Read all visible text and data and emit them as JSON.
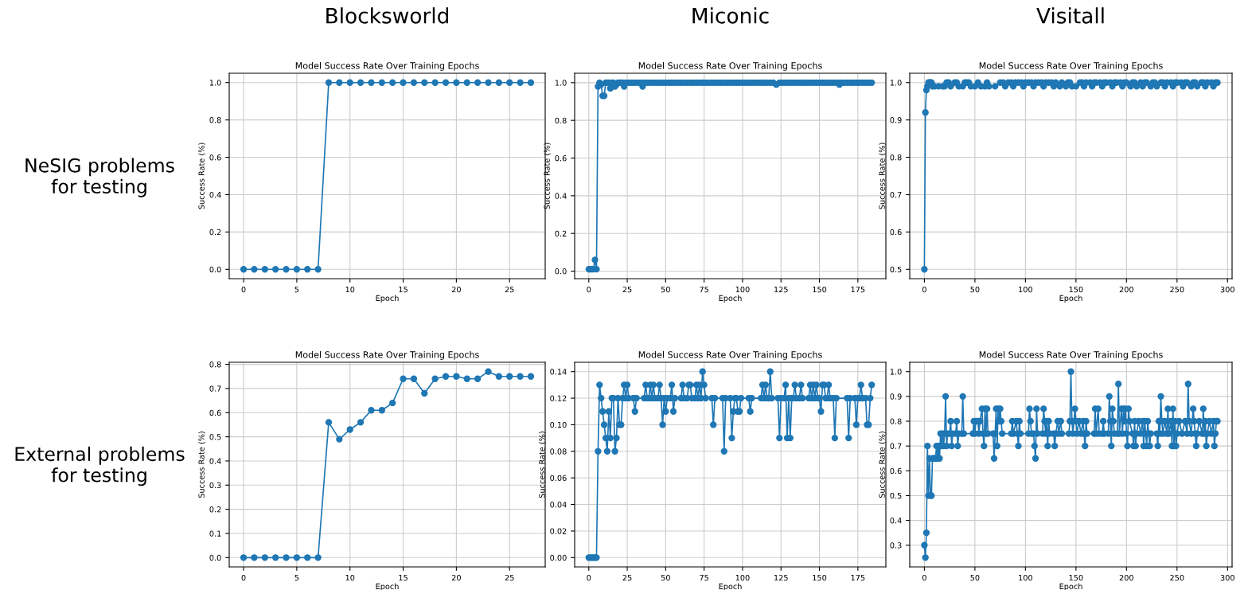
{
  "chart_data": [
    {
      "type": "line",
      "title": "Model Success Rate Over Training Epochs",
      "xlabel": "Epoch",
      "ylabel": "Success Rate (%)",
      "annotations": [
        "Blocksworld",
        "NeSIG problems\nfor testing"
      ],
      "grid": true,
      "marker": "circle",
      "line_style": "solid",
      "xlim": [
        -1.35,
        28.35
      ],
      "xticks": [
        0,
        5,
        10,
        15,
        20,
        25
      ],
      "ylim": [
        -0.05,
        1.05
      ],
      "yticks": [
        {
          "value": 0,
          "label": "0.0"
        },
        0.2,
        0.4,
        0.6,
        0.8,
        {
          "value": 1,
          "label": "1.0"
        }
      ],
      "series": [
        {
          "color": "#1f77b4",
          "x": [
            0,
            1,
            2,
            3,
            4,
            5,
            6,
            7,
            8,
            9,
            10,
            11,
            12,
            13,
            14,
            15,
            16,
            17,
            18,
            19,
            20,
            21,
            22,
            23,
            24,
            25,
            26,
            27
          ],
          "values": [
            0,
            0,
            0,
            0,
            0,
            0,
            0,
            0,
            1,
            1,
            1,
            1,
            1,
            1,
            1,
            1,
            1,
            1,
            1,
            1,
            1,
            1,
            1,
            1,
            1,
            1,
            1,
            1
          ]
        }
      ]
    },
    {
      "type": "line",
      "title": "Model Success Rate Over Training Epochs",
      "xlabel": "Epoch",
      "ylabel": "Success Rate (%)",
      "annotations": [
        "Miconic"
      ],
      "grid": true,
      "marker": "circle",
      "line_style": "solid",
      "xlim": [
        -9.2,
        193.2
      ],
      "xticks": [
        0,
        25,
        50,
        75,
        100,
        125,
        150,
        175
      ],
      "ylim": [
        -0.04,
        1.05
      ],
      "yticks": [
        {
          "value": 0,
          "label": "0.0"
        },
        0.2,
        0.4,
        0.6,
        0.8,
        {
          "value": 1,
          "label": "1.0"
        }
      ],
      "series": [
        {
          "color": "#1f77b4",
          "x": [
            0,
            1,
            2,
            3,
            4,
            5,
            6,
            7,
            8,
            9,
            10,
            11,
            12,
            13,
            14,
            15,
            16,
            17,
            18,
            19,
            20,
            21,
            22,
            23,
            24,
            26,
            28,
            30,
            32,
            34,
            35,
            36,
            38,
            40,
            42,
            44,
            46,
            48,
            50,
            52,
            54,
            56,
            58,
            60,
            62,
            64,
            66,
            68,
            70,
            72,
            74,
            76,
            78,
            80,
            82,
            84,
            86,
            88,
            90,
            92,
            94,
            96,
            98,
            100,
            102,
            104,
            106,
            108,
            110,
            112,
            114,
            116,
            118,
            120,
            122,
            124,
            126,
            128,
            130,
            132,
            134,
            136,
            138,
            140,
            142,
            144,
            146,
            148,
            150,
            152,
            154,
            156,
            158,
            160,
            162,
            163,
            164,
            166,
            168,
            170,
            172,
            174,
            176,
            178,
            180,
            182,
            184
          ],
          "values": [
            0.01,
            0.01,
            0.01,
            0.01,
            0.06,
            0.01,
            0.98,
            1.0,
            0.99,
            0.93,
            0.93,
            1.0,
            1.0,
            1.0,
            0.97,
            1.0,
            1.0,
            0.98,
            0.99,
            1.0,
            1.0,
            1.0,
            1.0,
            0.98,
            1.0,
            1.0,
            1.0,
            1.0,
            1.0,
            1.0,
            0.98,
            1.0,
            1.0,
            1.0,
            1.0,
            1.0,
            1.0,
            1.0,
            1.0,
            1.0,
            1.0,
            1.0,
            1.0,
            1.0,
            1.0,
            1.0,
            1.0,
            1.0,
            1.0,
            1.0,
            1.0,
            1.0,
            1.0,
            1.0,
            1.0,
            1.0,
            1.0,
            1.0,
            1.0,
            1.0,
            1.0,
            1.0,
            1.0,
            1.0,
            1.0,
            1.0,
            1.0,
            1.0,
            1.0,
            1.0,
            1.0,
            1.0,
            1.0,
            1.0,
            0.99,
            1.0,
            1.0,
            1.0,
            1.0,
            1.0,
            1.0,
            1.0,
            1.0,
            1.0,
            1.0,
            1.0,
            1.0,
            1.0,
            1.0,
            1.0,
            1.0,
            1.0,
            1.0,
            1.0,
            1.0,
            0.99,
            1.0,
            1.0,
            1.0,
            1.0,
            1.0,
            1.0,
            1.0,
            1.0,
            1.0,
            1.0,
            1.0
          ]
        }
      ]
    },
    {
      "type": "line",
      "title": "Model Success Rate Over Training Epochs",
      "xlabel": "Epoch",
      "ylabel": "Success Rate (%)",
      "annotations": [
        "Visitall"
      ],
      "grid": true,
      "marker": "circle",
      "line_style": "solid",
      "xlim": [
        -14.5,
        304.5
      ],
      "xticks": [
        0,
        50,
        100,
        150,
        200,
        250,
        300
      ],
      "ylim": [
        0.475,
        1.025
      ],
      "yticks": [
        0.5,
        0.6,
        0.7,
        0.8,
        0.9,
        {
          "value": 1,
          "label": "1.0"
        }
      ],
      "series": [
        {
          "color": "#1f77b4",
          "x": [
            0,
            1,
            2,
            3,
            4,
            5,
            6,
            7,
            8,
            10,
            14,
            18,
            20,
            22,
            24,
            26,
            30,
            32,
            34,
            38,
            40,
            42,
            44,
            46,
            50,
            53,
            56,
            60,
            62,
            64,
            70,
            75,
            78,
            80,
            83,
            86,
            88,
            90,
            93,
            96,
            98,
            100,
            103,
            106,
            108,
            110,
            113,
            116,
            118,
            120,
            123,
            126,
            128,
            130,
            134,
            136,
            140,
            142,
            144,
            146,
            150,
            154,
            156,
            158,
            160,
            164,
            166,
            168,
            170,
            174,
            176,
            178,
            180,
            184,
            186,
            188,
            190,
            194,
            196,
            198,
            200,
            204,
            206,
            208,
            210,
            214,
            216,
            218,
            220,
            224,
            226,
            228,
            230,
            234,
            236,
            238,
            240,
            244,
            246,
            248,
            250,
            254,
            256,
            258,
            260,
            264,
            266,
            268,
            270,
            274,
            276,
            278,
            280,
            284,
            286,
            288,
            290
          ],
          "values": [
            0.5,
            0.92,
            0.98,
            0.99,
            1.0,
            1.0,
            1.0,
            1.0,
            0.99,
            0.99,
            0.99,
            0.99,
            0.99,
            1.0,
            1.0,
            0.99,
            1.0,
            1.0,
            0.99,
            0.99,
            1.0,
            1.0,
            1.0,
            0.99,
            0.99,
            1.0,
            0.99,
            0.99,
            1.0,
            0.99,
            0.99,
            1.0,
            1.0,
            0.99,
            1.0,
            1.0,
            0.99,
            1.0,
            1.0,
            1.0,
            0.99,
            1.0,
            1.0,
            1.0,
            0.99,
            1.0,
            1.0,
            1.0,
            0.99,
            1.0,
            1.0,
            1.0,
            0.99,
            1.0,
            0.99,
            1.0,
            0.99,
            1.0,
            1.0,
            0.99,
            0.99,
            1.0,
            1.0,
            0.99,
            1.0,
            1.0,
            0.99,
            1.0,
            1.0,
            1.0,
            0.99,
            1.0,
            1.0,
            1.0,
            0.99,
            1.0,
            1.0,
            1.0,
            0.99,
            1.0,
            1.0,
            0.99,
            1.0,
            1.0,
            0.99,
            1.0,
            0.99,
            1.0,
            1.0,
            0.99,
            1.0,
            1.0,
            0.99,
            1.0,
            1.0,
            0.99,
            1.0,
            1.0,
            0.99,
            1.0,
            1.0,
            1.0,
            0.99,
            1.0,
            1.0,
            0.99,
            1.0,
            1.0,
            0.99,
            1.0,
            1.0,
            0.99,
            1.0,
            1.0,
            0.99,
            1.0,
            1.0
          ]
        }
      ]
    },
    {
      "type": "line",
      "title": "Model Success Rate Over Training Epochs",
      "xlabel": "Epoch",
      "ylabel": "Success Rate (%)",
      "annotations": [
        "External problems\nfor testing"
      ],
      "grid": true,
      "marker": "circle",
      "line_style": "solid",
      "xlim": [
        -1.35,
        28.35
      ],
      "xticks": [
        0,
        5,
        10,
        15,
        20,
        25
      ],
      "ylim": [
        -0.0385,
        0.8085
      ],
      "yticks": [
        {
          "value": 0,
          "label": "0.0"
        },
        0.1,
        0.2,
        0.3,
        0.4,
        0.5,
        0.6,
        0.7,
        0.8
      ],
      "series": [
        {
          "color": "#1f77b4",
          "x": [
            0,
            1,
            2,
            3,
            4,
            5,
            6,
            7,
            8,
            9,
            10,
            11,
            12,
            13,
            14,
            15,
            16,
            17,
            18,
            19,
            20,
            21,
            22,
            23,
            24,
            25,
            26,
            27
          ],
          "values": [
            0,
            0,
            0,
            0,
            0,
            0,
            0,
            0,
            0.56,
            0.49,
            0.53,
            0.56,
            0.61,
            0.61,
            0.64,
            0.74,
            0.74,
            0.68,
            0.74,
            0.75,
            0.75,
            0.74,
            0.74,
            0.77,
            0.75,
            0.75,
            0.75,
            0.75
          ]
        }
      ]
    },
    {
      "type": "line",
      "title": "Model Success Rate Over Training Epochs",
      "xlabel": "Epoch",
      "ylabel": "Success Rate (%)",
      "grid": true,
      "marker": "circle",
      "line_style": "solid",
      "xlim": [
        -9.2,
        193.2
      ],
      "xticks": [
        0,
        25,
        50,
        75,
        100,
        125,
        150,
        175
      ],
      "ylim": [
        -0.007,
        0.147
      ],
      "yticks": [
        {
          "value": 0,
          "label": "0.00"
        },
        0.02,
        0.04,
        0.06,
        0.08,
        {
          "value": 0.1,
          "label": "0.10"
        },
        0.12,
        0.14
      ],
      "series": [
        {
          "color": "#1f77b4",
          "x": [
            0,
            1,
            2,
            3,
            4,
            5,
            6,
            7,
            8,
            9,
            10,
            11,
            12,
            13,
            14,
            15,
            16,
            17,
            18,
            19,
            20,
            21,
            22,
            23,
            24,
            25,
            26,
            29,
            30,
            31,
            36,
            37,
            38,
            39,
            40,
            41,
            42,
            43,
            45,
            46,
            47,
            48,
            49,
            50,
            51,
            53,
            54,
            55,
            56,
            60,
            61,
            62,
            64,
            65,
            66,
            67,
            69,
            70,
            71,
            72,
            73,
            74,
            75,
            76,
            80,
            81,
            82,
            87,
            88,
            89,
            92,
            93,
            94,
            95,
            96,
            97,
            98,
            99,
            104,
            105,
            106,
            112,
            113,
            114,
            115,
            116,
            117,
            118,
            119,
            123,
            124,
            125,
            127,
            128,
            129,
            130,
            131,
            132,
            133,
            134,
            135,
            137,
            138,
            139,
            143,
            144,
            145,
            146,
            147,
            148,
            149,
            150,
            151,
            152,
            153,
            154,
            155,
            156,
            157,
            159,
            160,
            161,
            168,
            169,
            170,
            173,
            174,
            175,
            176,
            177,
            178,
            180,
            181,
            182,
            183,
            184
          ],
          "values": [
            0,
            0,
            0,
            0,
            0,
            0,
            0.08,
            0.13,
            0.12,
            0.11,
            0.1,
            0.09,
            0.08,
            0.11,
            0.09,
            0.12,
            0.12,
            0.08,
            0.09,
            0.12,
            0.1,
            0.1,
            0.12,
            0.13,
            0.12,
            0.13,
            0.12,
            0.12,
            0.11,
            0.12,
            0.12,
            0.13,
            0.12,
            0.12,
            0.13,
            0.12,
            0.13,
            0.12,
            0.12,
            0.13,
            0.12,
            0.1,
            0.12,
            0.11,
            0.12,
            0.12,
            0.13,
            0.11,
            0.12,
            0.12,
            0.13,
            0.12,
            0.12,
            0.13,
            0.13,
            0.12,
            0.12,
            0.13,
            0.12,
            0.13,
            0.12,
            0.14,
            0.13,
            0.12,
            0.12,
            0.1,
            0.12,
            0.12,
            0.08,
            0.12,
            0.12,
            0.09,
            0.11,
            0.12,
            0.12,
            0.11,
            0.11,
            0.12,
            0.12,
            0.11,
            0.12,
            0.12,
            0.13,
            0.12,
            0.13,
            0.12,
            0.12,
            0.14,
            0.12,
            0.12,
            0.09,
            0.12,
            0.12,
            0.13,
            0.09,
            0.12,
            0.09,
            0.12,
            0.12,
            0.13,
            0.12,
            0.12,
            0.13,
            0.12,
            0.12,
            0.13,
            0.12,
            0.13,
            0.12,
            0.13,
            0.12,
            0.12,
            0.11,
            0.13,
            0.13,
            0.12,
            0.12,
            0.13,
            0.12,
            0.12,
            0.09,
            0.12,
            0.12,
            0.09,
            0.12,
            0.12,
            0.1,
            0.12,
            0.12,
            0.13,
            0.12,
            0.12,
            0.1,
            0.1,
            0.12,
            0.13
          ]
        }
      ]
    },
    {
      "type": "line",
      "title": "Model Success Rate Over Training Epochs",
      "xlabel": "Epoch",
      "ylabel": "Success Rate (%)",
      "grid": true,
      "marker": "circle",
      "line_style": "solid",
      "xlim": [
        -14.5,
        304.5
      ],
      "xticks": [
        0,
        50,
        100,
        150,
        200,
        250,
        300
      ],
      "ylim": [
        0.2125,
        1.0375
      ],
      "yticks": [
        0.3,
        0.4,
        0.5,
        0.6,
        0.7,
        0.8,
        0.9,
        {
          "value": 1,
          "label": "1.0"
        }
      ],
      "series": [
        {
          "color": "#1f77b4",
          "x": [
            0,
            1,
            2,
            3,
            4,
            5,
            6,
            7,
            8,
            9,
            10,
            11,
            12,
            13,
            14,
            15,
            16,
            17,
            18,
            19,
            20,
            21,
            22,
            23,
            25,
            26,
            27,
            28,
            31,
            32,
            33,
            34,
            37,
            38,
            39,
            48,
            49,
            50,
            51,
            53,
            54,
            55,
            57,
            58,
            59,
            60,
            61,
            62,
            63,
            68,
            69,
            70,
            71,
            72,
            73,
            74,
            75,
            76,
            77,
            86,
            87,
            88,
            91,
            92,
            93,
            94,
            95,
            103,
            104,
            105,
            106,
            108,
            109,
            110,
            111,
            112,
            117,
            118,
            119,
            120,
            121,
            122,
            123,
            124,
            128,
            129,
            130,
            132,
            133,
            135,
            136,
            143,
            144,
            145,
            146,
            147,
            149,
            150,
            151,
            153,
            155,
            157,
            158,
            159,
            160,
            161,
            168,
            169,
            170,
            172,
            173,
            176,
            177,
            178,
            182,
            183,
            184,
            185,
            186,
            187,
            188,
            191,
            192,
            193,
            195,
            196,
            197,
            198,
            199,
            200,
            201,
            202,
            203,
            206,
            207,
            208,
            209,
            210,
            212,
            214,
            216,
            217,
            218,
            219,
            220,
            221,
            222,
            223,
            224,
            230,
            231,
            232,
            233,
            234,
            235,
            236,
            238,
            240,
            241,
            242,
            244,
            245,
            246,
            247,
            248,
            249,
            250,
            252,
            255,
            258,
            260,
            261,
            262,
            264,
            266,
            267,
            268,
            269,
            270,
            272,
            275,
            276,
            277,
            278,
            279,
            280,
            282,
            284,
            286,
            287,
            288,
            289,
            290
          ],
          "values": [
            0.3,
            0.25,
            0.35,
            0.7,
            0.5,
            0.65,
            0.5,
            0.5,
            0.65,
            0.65,
            0.65,
            0.65,
            0.7,
            0.65,
            0.7,
            0.65,
            0.75,
            0.7,
            0.75,
            0.7,
            0.75,
            0.9,
            0.7,
            0.75,
            0.75,
            0.8,
            0.7,
            0.75,
            0.75,
            0.8,
            0.7,
            0.75,
            0.75,
            0.9,
            0.75,
            0.75,
            0.8,
            0.75,
            0.8,
            0.8,
            0.75,
            0.8,
            0.85,
            0.75,
            0.7,
            0.85,
            0.75,
            0.85,
            0.75,
            0.75,
            0.65,
            0.75,
            0.85,
            0.7,
            0.85,
            0.8,
            0.85,
            0.8,
            0.75,
            0.75,
            0.8,
            0.75,
            0.8,
            0.75,
            0.7,
            0.8,
            0.75,
            0.75,
            0.85,
            0.8,
            0.75,
            0.75,
            0.7,
            0.65,
            0.85,
            0.75,
            0.75,
            0.85,
            0.8,
            0.75,
            0.8,
            0.7,
            0.8,
            0.75,
            0.75,
            0.7,
            0.75,
            0.8,
            0.75,
            0.8,
            0.75,
            0.75,
            0.8,
            1.0,
            0.8,
            0.75,
            0.85,
            0.8,
            0.75,
            0.8,
            0.75,
            0.8,
            0.75,
            0.7,
            0.8,
            0.75,
            0.75,
            0.85,
            0.75,
            0.85,
            0.75,
            0.75,
            0.8,
            0.75,
            0.75,
            0.9,
            0.8,
            0.7,
            0.85,
            0.8,
            0.75,
            0.75,
            0.95,
            0.75,
            0.85,
            0.75,
            0.85,
            0.8,
            0.85,
            0.75,
            0.7,
            0.85,
            0.8,
            0.75,
            0.7,
            0.8,
            0.7,
            0.75,
            0.8,
            0.75,
            0.8,
            0.7,
            0.8,
            0.75,
            0.7,
            0.8,
            0.75,
            0.7,
            0.75,
            0.75,
            0.7,
            0.8,
            0.75,
            0.9,
            0.8,
            0.75,
            0.8,
            0.75,
            0.85,
            0.75,
            0.8,
            0.7,
            0.85,
            0.7,
            0.8,
            0.7,
            0.75,
            0.8,
            0.75,
            0.8,
            0.75,
            0.95,
            0.8,
            0.75,
            0.85,
            0.8,
            0.75,
            0.7,
            0.75,
            0.8,
            0.75,
            0.85,
            0.75,
            0.8,
            0.7,
            0.75,
            0.8,
            0.75,
            0.8,
            0.7,
            0.75,
            0.8,
            0.8
          ]
        }
      ]
    }
  ]
}
